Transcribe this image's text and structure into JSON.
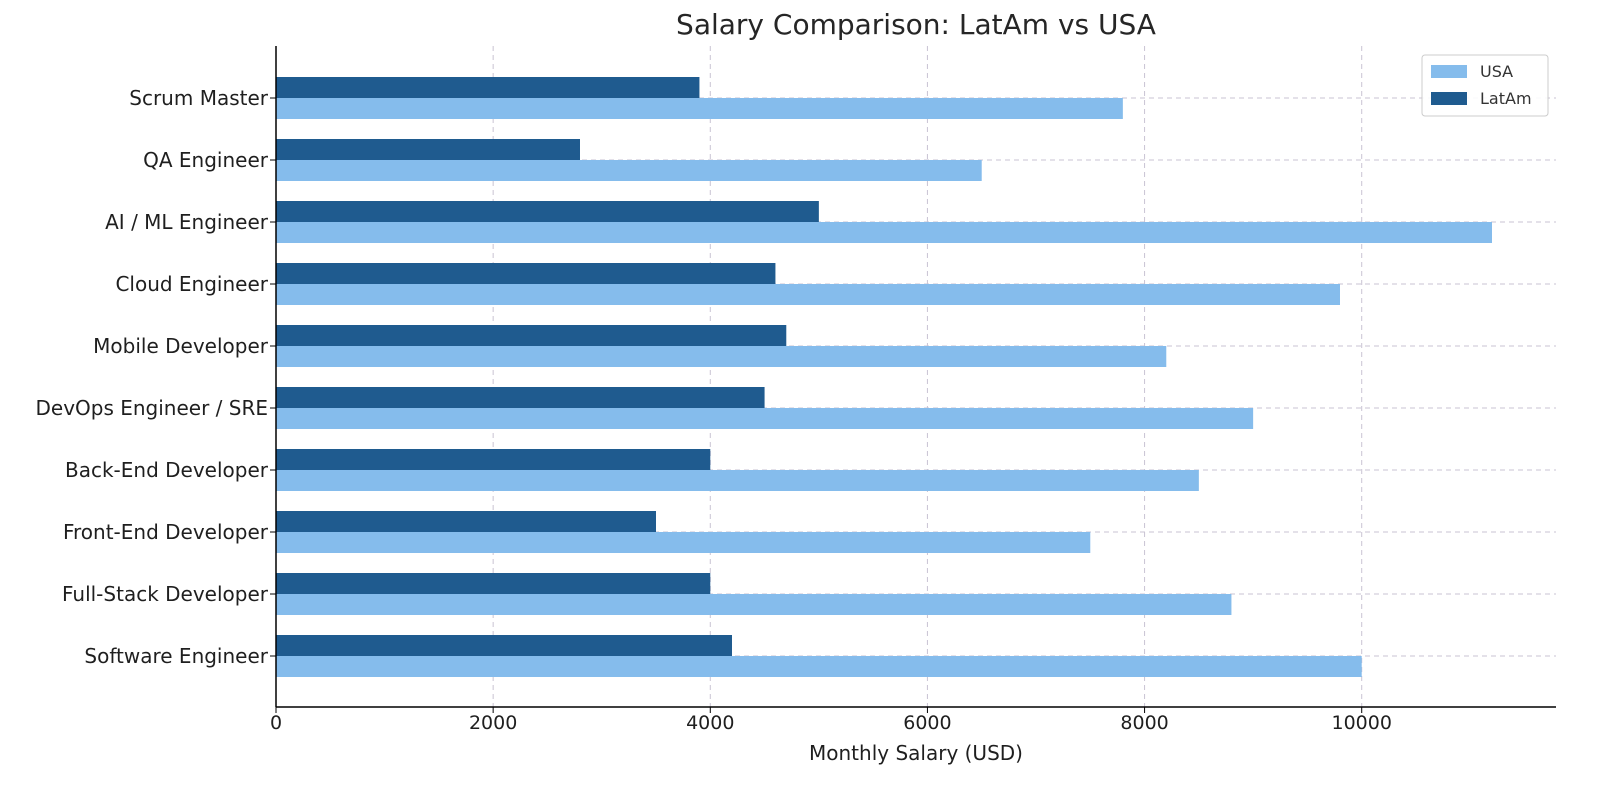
{
  "chart_data": {
    "type": "bar",
    "orientation": "horizontal",
    "title": "Salary Comparison: LatAm vs USA",
    "xlabel": "Monthly Salary (USD)",
    "ylabel": "",
    "xlim": [
      0,
      11800
    ],
    "xticks": [
      0,
      2000,
      4000,
      6000,
      8000,
      10000
    ],
    "grid": true,
    "legend_position": "top-right",
    "categories": [
      "Scrum Master",
      "QA Engineer",
      "AI / ML Engineer",
      "Cloud Engineer",
      "Mobile Developer",
      "DevOps Engineer / SRE",
      "Back-End Developer",
      "Front-End Developer",
      "Full-Stack Developer",
      "Software Engineer"
    ],
    "series": [
      {
        "name": "USA",
        "color": "#85bcec",
        "values": [
          7800,
          6500,
          11200,
          9800,
          8200,
          9000,
          8500,
          7500,
          8800,
          10000
        ]
      },
      {
        "name": "LatAm",
        "color": "#1f5b8f",
        "values": [
          3900,
          2800,
          5000,
          4600,
          4700,
          4500,
          4000,
          3500,
          4000,
          4200
        ]
      }
    ]
  }
}
